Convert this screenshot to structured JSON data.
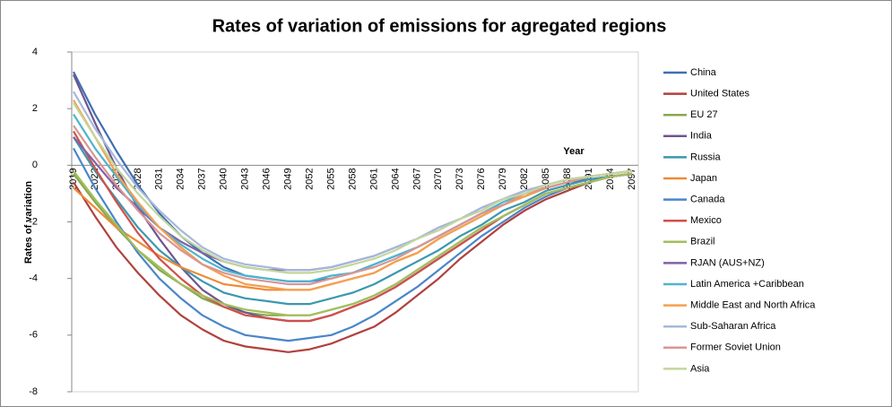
{
  "chart_data": {
    "type": "line",
    "title": "Rates of variation of emissions for agregated regions",
    "xlabel": "Year",
    "ylabel": "Rates of variation",
    "categories": [
      "2019",
      "2022",
      "2025",
      "2028",
      "2031",
      "2034",
      "2037",
      "2040",
      "2043",
      "2046",
      "2049",
      "2052",
      "2055",
      "2058",
      "2061",
      "2064",
      "2067",
      "2070",
      "2073",
      "2076",
      "2079",
      "2082",
      "2085",
      "2088",
      "2091",
      "2094",
      "2097"
    ],
    "ylim": [
      -8,
      4
    ],
    "yticks": [
      -8,
      -6,
      -4,
      -2,
      0,
      2,
      4
    ],
    "grid": false,
    "legend": "right",
    "series": [
      {
        "name": "China",
        "color": "#3F6FB0",
        "values": [
          3.3,
          1.8,
          0.5,
          -0.7,
          -1.7,
          -2.5,
          -3.1,
          -3.6,
          -3.9,
          -4,
          -4.1,
          -4.1,
          -4,
          -3.8,
          -3.5,
          -3.2,
          -2.9,
          -2.5,
          -2.1,
          -1.7,
          -1.4,
          -1.1,
          -0.8,
          -0.6,
          -0.5,
          -0.4,
          -0.3
        ]
      },
      {
        "name": "United States",
        "color": "#B0413E",
        "values": [
          -0.6,
          -1.8,
          -2.9,
          -3.8,
          -4.6,
          -5.3,
          -5.8,
          -6.2,
          -6.4,
          -6.5,
          -6.6,
          -6.5,
          -6.3,
          -6,
          -5.7,
          -5.2,
          -4.6,
          -4,
          -3.3,
          -2.7,
          -2.1,
          -1.6,
          -1.2,
          -0.9,
          -0.6,
          -0.4,
          -0.3
        ]
      },
      {
        "name": "EU 27",
        "color": "#8AA84C",
        "values": [
          -0.3,
          -1.3,
          -2.2,
          -3,
          -3.7,
          -4.2,
          -4.7,
          -5,
          -5.2,
          -5.3,
          -5.3,
          -5.3,
          -5.1,
          -4.9,
          -4.6,
          -4.2,
          -3.7,
          -3.2,
          -2.7,
          -2.2,
          -1.8,
          -1.4,
          -1,
          -0.8,
          -0.6,
          -0.4,
          -0.3
        ]
      },
      {
        "name": "India",
        "color": "#6E5591",
        "values": [
          3.2,
          1.5,
          -0.1,
          -1.5,
          -2.6,
          -3.6,
          -4.4,
          -4.9,
          -5.2,
          -5.4,
          -5.5,
          -5.5,
          -5.3,
          -5,
          -4.7,
          -4.3,
          -3.8,
          -3.3,
          -2.8,
          -2.3,
          -1.8,
          -1.4,
          -1,
          -0.8,
          -0.6,
          -0.4,
          -0.3
        ]
      },
      {
        "name": "Russia",
        "color": "#3B98AE",
        "values": [
          1,
          -0.2,
          -1.2,
          -2.2,
          -3,
          -3.6,
          -4.1,
          -4.5,
          -4.7,
          -4.8,
          -4.9,
          -4.9,
          -4.7,
          -4.5,
          -4.2,
          -3.8,
          -3.4,
          -3,
          -2.5,
          -2.1,
          -1.6,
          -1.3,
          -0.9,
          -0.7,
          -0.5,
          -0.4,
          -0.3
        ]
      },
      {
        "name": "Japan",
        "color": "#EE8A36",
        "values": [
          -0.8,
          -1.5,
          -2.2,
          -2.7,
          -3.2,
          -3.6,
          -3.9,
          -4.2,
          -4.3,
          -4.4,
          -4.4,
          -4.4,
          -4.2,
          -4,
          -3.8,
          -3.4,
          -3.1,
          -2.6,
          -2.2,
          -1.8,
          -1.4,
          -1.1,
          -0.8,
          -0.6,
          -0.4,
          -0.3,
          -0.2
        ]
      },
      {
        "name": "Canada",
        "color": "#4A86C8",
        "values": [
          0.6,
          -0.8,
          -2,
          -3.1,
          -4,
          -4.7,
          -5.3,
          -5.7,
          -6,
          -6.1,
          -6.2,
          -6.1,
          -6,
          -5.7,
          -5.3,
          -4.8,
          -4.3,
          -3.7,
          -3.1,
          -2.5,
          -2,
          -1.5,
          -1.1,
          -0.8,
          -0.6,
          -0.4,
          -0.3
        ]
      },
      {
        "name": "Mexico",
        "color": "#D0504C",
        "values": [
          1.2,
          -0.1,
          -1.3,
          -2.4,
          -3.3,
          -4,
          -4.6,
          -5,
          -5.3,
          -5.4,
          -5.5,
          -5.5,
          -5.3,
          -5,
          -4.7,
          -4.3,
          -3.8,
          -3.3,
          -2.8,
          -2.3,
          -1.8,
          -1.4,
          -1,
          -0.8,
          -0.6,
          -0.4,
          -0.3
        ]
      },
      {
        "name": "Brazil",
        "color": "#A2BF5E",
        "values": [
          -0.2,
          -1.2,
          -2.1,
          -3,
          -3.6,
          -4.2,
          -4.6,
          -4.9,
          -5.1,
          -5.2,
          -5.3,
          -5.3,
          -5.1,
          -4.9,
          -4.6,
          -4.2,
          -3.7,
          -3.2,
          -2.7,
          -2.2,
          -1.8,
          -1.4,
          -1,
          -0.8,
          -0.6,
          -0.4,
          -0.3
        ]
      },
      {
        "name": "RJAN (AUS+NZ)",
        "color": "#7F62A8",
        "values": [
          1,
          0.1,
          -0.8,
          -1.5,
          -2.2,
          -2.7,
          -3.1,
          -3.4,
          -3.6,
          -3.7,
          -3.7,
          -3.7,
          -3.6,
          -3.4,
          -3.2,
          -2.9,
          -2.6,
          -2.2,
          -1.9,
          -1.5,
          -1.2,
          -0.9,
          -0.7,
          -0.5,
          -0.4,
          -0.3,
          -0.2
        ]
      },
      {
        "name": "Latin America +Caribbean",
        "color": "#4DB5CE",
        "values": [
          1.8,
          0.6,
          -0.4,
          -1.4,
          -2.2,
          -2.8,
          -3.3,
          -3.7,
          -3.9,
          -4,
          -4.1,
          -4.1,
          -3.9,
          -3.8,
          -3.5,
          -3.2,
          -2.9,
          -2.5,
          -2.1,
          -1.7,
          -1.3,
          -1,
          -0.8,
          -0.6,
          -0.4,
          -0.3,
          -0.2
        ]
      },
      {
        "name": "Middle East and North Africa",
        "color": "#F5A04E",
        "values": [
          2.3,
          1,
          -0.3,
          -1.3,
          -2.2,
          -2.9,
          -3.5,
          -3.9,
          -4.2,
          -4.3,
          -4.4,
          -4.4,
          -4.2,
          -4,
          -3.8,
          -3.4,
          -3.1,
          -2.6,
          -2.2,
          -1.8,
          -1.4,
          -1.1,
          -0.8,
          -0.6,
          -0.4,
          -0.3,
          -0.2
        ]
      },
      {
        "name": "Sub-Saharan Africa",
        "color": "#A7B8DA",
        "values": [
          2.6,
          1.3,
          0.2,
          -0.8,
          -1.6,
          -2.3,
          -2.9,
          -3.3,
          -3.5,
          -3.6,
          -3.7,
          -3.7,
          -3.6,
          -3.4,
          -3.2,
          -2.9,
          -2.6,
          -2.2,
          -1.9,
          -1.5,
          -1.2,
          -0.9,
          -0.7,
          -0.5,
          -0.4,
          -0.3,
          -0.2
        ]
      },
      {
        "name": "Former Soviet Union",
        "color": "#D99694",
        "values": [
          1.4,
          0.3,
          -0.7,
          -1.6,
          -2.4,
          -3,
          -3.5,
          -3.8,
          -4,
          -4.1,
          -4.2,
          -4.2,
          -4,
          -3.8,
          -3.6,
          -3.3,
          -2.9,
          -2.5,
          -2.1,
          -1.7,
          -1.4,
          -1,
          -0.8,
          -0.6,
          -0.4,
          -0.3,
          -0.2
        ]
      },
      {
        "name": "Asia",
        "color": "#C3D69B",
        "values": [
          2.2,
          1,
          -0.1,
          -1,
          -1.8,
          -2.5,
          -3,
          -3.4,
          -3.6,
          -3.7,
          -3.8,
          -3.8,
          -3.7,
          -3.5,
          -3.3,
          -3,
          -2.6,
          -2.3,
          -1.9,
          -1.6,
          -1.2,
          -1,
          -0.7,
          -0.5,
          -0.4,
          -0.3,
          -0.2
        ]
      }
    ]
  }
}
